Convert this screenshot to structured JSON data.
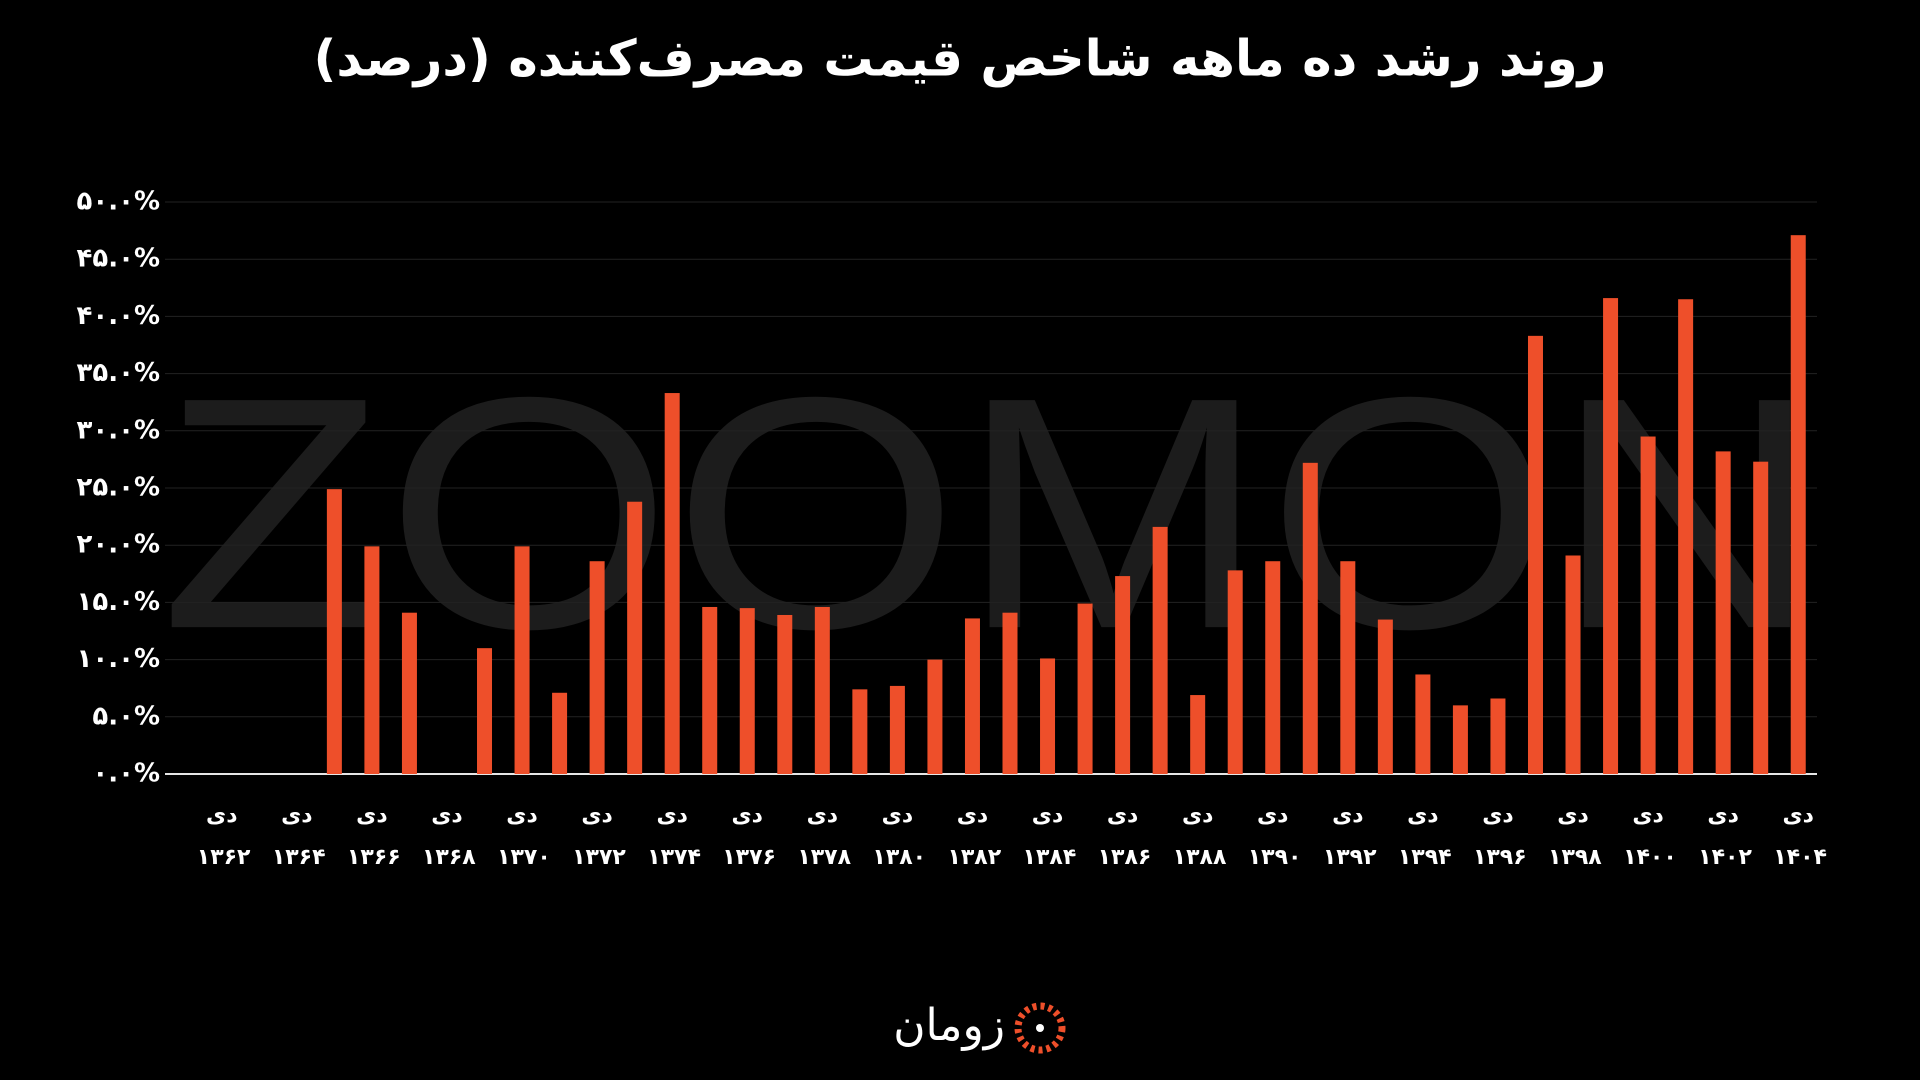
{
  "chart_data": {
    "type": "bar",
    "title": "روند رشد ده ماهه شاخص قیمت مصرف‌کننده (درصد)",
    "watermark": "ZOOMON",
    "brand": "زومان",
    "color": "#ee4f2a",
    "grid": true,
    "categories": [
      "دی ۱۳۶۲",
      null,
      "دی ۱۳۶۴",
      null,
      "دی ۱۳۶۶",
      null,
      "دی ۱۳۶۸",
      null,
      "دی ۱۳۷۰",
      null,
      "دی ۱۳۷۲",
      null,
      "دی ۱۳۷۴",
      null,
      "دی ۱۳۷۶",
      null,
      "دی ۱۳۷۸",
      null,
      "دی ۱۳۸۰",
      null,
      "دی ۱۳۸۲",
      null,
      "دی ۱۳۸۴",
      null,
      "دی ۱۳۸۶",
      null,
      "دی ۱۳۸۸",
      null,
      "دی ۱۳۹۰",
      null,
      "دی ۱۳۹۲",
      null,
      "دی ۱۳۹۴",
      null,
      "دی ۱۳۹۶",
      null,
      "دی ۱۳۹۸",
      null,
      "دی ۱۴۰۰",
      null,
      "دی ۱۴۰۲",
      null,
      "دی ۱۴۰۴"
    ],
    "values": [
      null,
      null,
      null,
      24.9,
      19.9,
      14.1,
      null,
      11.0,
      19.9,
      7.1,
      18.6,
      23.8,
      33.3,
      14.6,
      14.5,
      13.9,
      14.6,
      7.4,
      7.7,
      10.0,
      13.6,
      14.1,
      10.1,
      14.9,
      17.3,
      21.6,
      6.9,
      17.8,
      18.6,
      27.2,
      18.6,
      13.5,
      8.7,
      6.0,
      6.6,
      38.3,
      19.1,
      41.6,
      29.5,
      41.5,
      28.2,
      27.3,
      47.1
    ],
    "ylim": [
      0,
      50
    ],
    "yticks": [
      {
        "value": 0,
        "label": "۰.۰%"
      },
      {
        "value": 5,
        "label": "۵.۰%"
      },
      {
        "value": 10,
        "label": "۱۰.۰%"
      },
      {
        "value": 15,
        "label": "۱۵.۰%"
      },
      {
        "value": 20,
        "label": "۲۰.۰%"
      },
      {
        "value": 25,
        "label": "۲۵.۰%"
      },
      {
        "value": 30,
        "label": "۳۰.۰%"
      },
      {
        "value": 35,
        "label": "۳۵.۰%"
      },
      {
        "value": 40,
        "label": "۴۰.۰%"
      },
      {
        "value": 45,
        "label": "۴۵.۰%"
      },
      {
        "value": 50,
        "label": "۵۰.۰%"
      }
    ]
  }
}
